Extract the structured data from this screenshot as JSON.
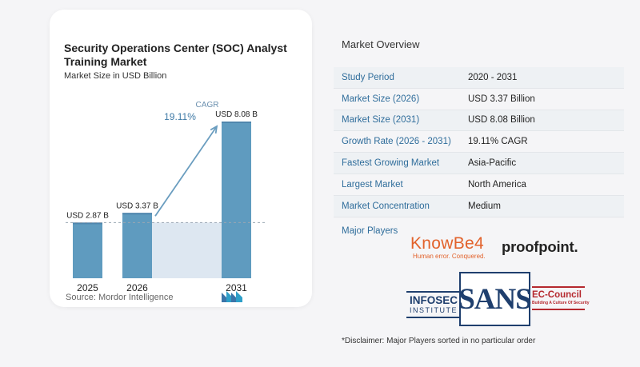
{
  "chart_data": {
    "type": "bar",
    "title": "Security Operations Center (SOC) Analyst Training Market",
    "subtitle": "Market Size in USD Billion",
    "categories": [
      "2025",
      "2026",
      "2031"
    ],
    "values": [
      2.87,
      3.37,
      8.08
    ],
    "value_labels": [
      "USD 2.87 B",
      "USD 3.37 B",
      "USD 8.08 B"
    ],
    "cagr_label": "CAGR",
    "cagr_value": "19.11%",
    "colors": {
      "bar": "#5f9bbf",
      "bar_top": "#4f86ad",
      "band": "#dde7f1",
      "arrow": "#6a9dbf"
    }
  },
  "source": "Source:  Mordor Intelligence",
  "overview": {
    "title": "Market Overview",
    "rows": [
      {
        "label": "Study Period",
        "value": "2020 - 2031"
      },
      {
        "label": "Market Size (2026)",
        "value": "USD 3.37 Billion"
      },
      {
        "label": "Market Size (2031)",
        "value": "USD 8.08 Billion"
      },
      {
        "label": "Growth Rate (2026 - 2031)",
        "value": "19.11% CAGR"
      },
      {
        "label": "Fastest Growing Market",
        "value": "Asia-Pacific"
      },
      {
        "label": "Largest Market",
        "value": "North America"
      },
      {
        "label": "Market Concentration",
        "value": "Medium"
      }
    ],
    "players_label": "Major Players"
  },
  "players": {
    "knowbe4": {
      "name": "KnowBe4",
      "tagline": "Human error. Conquered."
    },
    "proofpoint": {
      "name": "proofpoint."
    },
    "infosec": {
      "name": "INFOSEC",
      "sub": "INSTITUTE"
    },
    "sans": {
      "name": "SANS"
    },
    "eccouncil": {
      "name": "EC-Council",
      "tagline": "Building A Culture Of Security"
    }
  },
  "disclaimer": "*Disclaimer: Major Players sorted in no particular order"
}
